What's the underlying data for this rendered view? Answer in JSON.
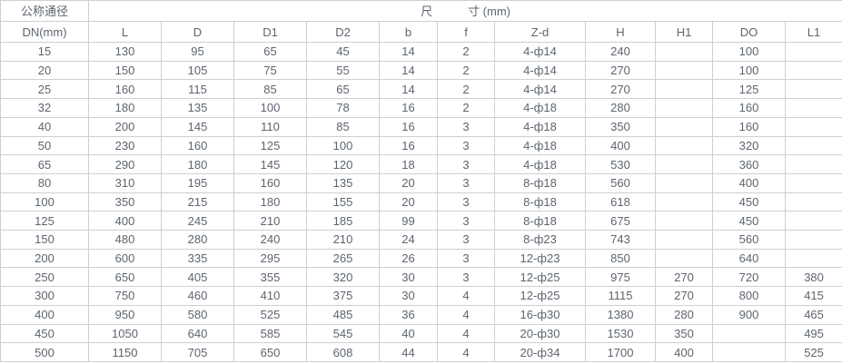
{
  "chart_data": {
    "type": "table",
    "group_header": {
      "left": "公称通径",
      "right": "尺　　　寸 (mm)"
    },
    "columns": [
      "DN(mm)",
      "L",
      "D",
      "D1",
      "D2",
      "b",
      "f",
      "Z-d",
      "H",
      "H1",
      "DO",
      "L1"
    ],
    "rows": [
      [
        "15",
        "130",
        "95",
        "65",
        "45",
        "14",
        "2",
        "4-ф14",
        "240",
        "",
        "100",
        ""
      ],
      [
        "20",
        "150",
        "105",
        "75",
        "55",
        "14",
        "2",
        "4-ф14",
        "270",
        "",
        "100",
        ""
      ],
      [
        "25",
        "160",
        "115",
        "85",
        "65",
        "14",
        "2",
        "4-ф14",
        "270",
        "",
        "125",
        ""
      ],
      [
        "32",
        "180",
        "135",
        "100",
        "78",
        "16",
        "2",
        "4-ф18",
        "280",
        "",
        "160",
        ""
      ],
      [
        "40",
        "200",
        "145",
        "110",
        "85",
        "16",
        "3",
        "4-ф18",
        "350",
        "",
        "160",
        ""
      ],
      [
        "50",
        "230",
        "160",
        "125",
        "100",
        "16",
        "3",
        "4-ф18",
        "400",
        "",
        "320",
        ""
      ],
      [
        "65",
        "290",
        "180",
        "145",
        "120",
        "18",
        "3",
        "4-ф18",
        "530",
        "",
        "360",
        ""
      ],
      [
        "80",
        "310",
        "195",
        "160",
        "135",
        "20",
        "3",
        "8-ф18",
        "560",
        "",
        "400",
        ""
      ],
      [
        "100",
        "350",
        "215",
        "180",
        "155",
        "20",
        "3",
        "8-ф18",
        "618",
        "",
        "450",
        ""
      ],
      [
        "125",
        "400",
        "245",
        "210",
        "185",
        "99",
        "3",
        "8-ф18",
        "675",
        "",
        "450",
        ""
      ],
      [
        "150",
        "480",
        "280",
        "240",
        "210",
        "24",
        "3",
        "8-ф23",
        "743",
        "",
        "560",
        ""
      ],
      [
        "200",
        "600",
        "335",
        "295",
        "265",
        "26",
        "3",
        "12-ф23",
        "850",
        "",
        "640",
        ""
      ],
      [
        "250",
        "650",
        "405",
        "355",
        "320",
        "30",
        "3",
        "12-ф25",
        "975",
        "270",
        "720",
        "380"
      ],
      [
        "300",
        "750",
        "460",
        "410",
        "375",
        "30",
        "4",
        "12-ф25",
        "1115",
        "270",
        "800",
        "415"
      ],
      [
        "400",
        "950",
        "580",
        "525",
        "485",
        "36",
        "4",
        "16-ф30",
        "1380",
        "280",
        "900",
        "465"
      ],
      [
        "450",
        "1050",
        "640",
        "585",
        "545",
        "40",
        "4",
        "20-ф30",
        "1530",
        "350",
        "",
        "495"
      ],
      [
        "500",
        "1150",
        "705",
        "650",
        "608",
        "44",
        "4",
        "20-ф34",
        "1700",
        "400",
        "",
        "525"
      ]
    ]
  },
  "colors": {
    "text": "#5d6570",
    "border": "#cfcfcf",
    "background": "#ffffff"
  }
}
